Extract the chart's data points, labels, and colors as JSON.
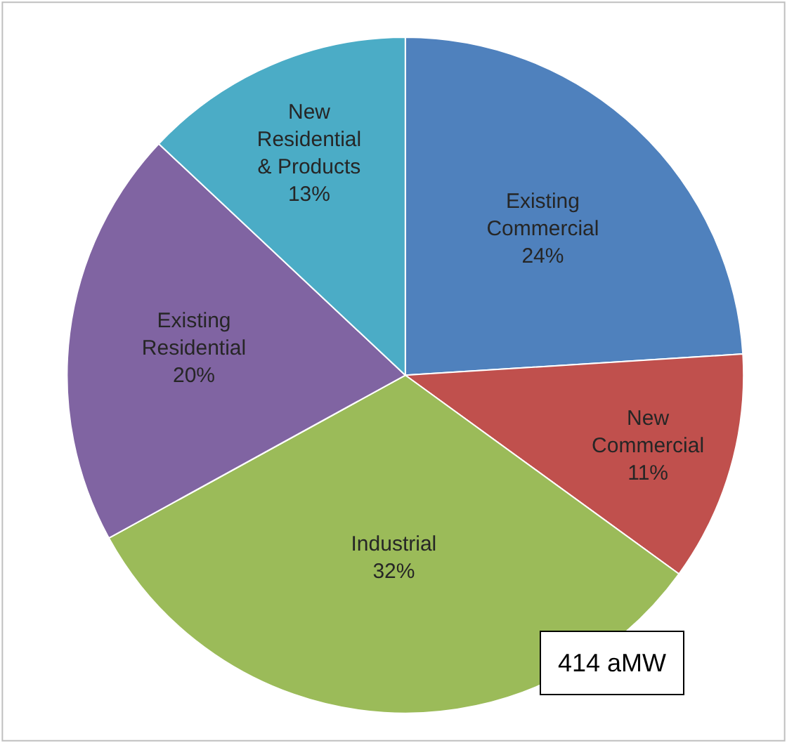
{
  "chart_data": {
    "type": "pie",
    "categories": [
      "Existing\nCommercial",
      "New\nCommercial",
      "Industrial",
      "Existing\nResidential",
      "New\nResidential\n& Products"
    ],
    "values": [
      24,
      11,
      32,
      20,
      13
    ],
    "value_labels": [
      "24%",
      "11%",
      "32%",
      "20%",
      "13%"
    ],
    "colors": [
      "#4f81bd",
      "#c0504d",
      "#9bbb59",
      "#8064a2",
      "#4bacc6"
    ],
    "legend": false,
    "annotations": [
      "414 aMW"
    ]
  }
}
